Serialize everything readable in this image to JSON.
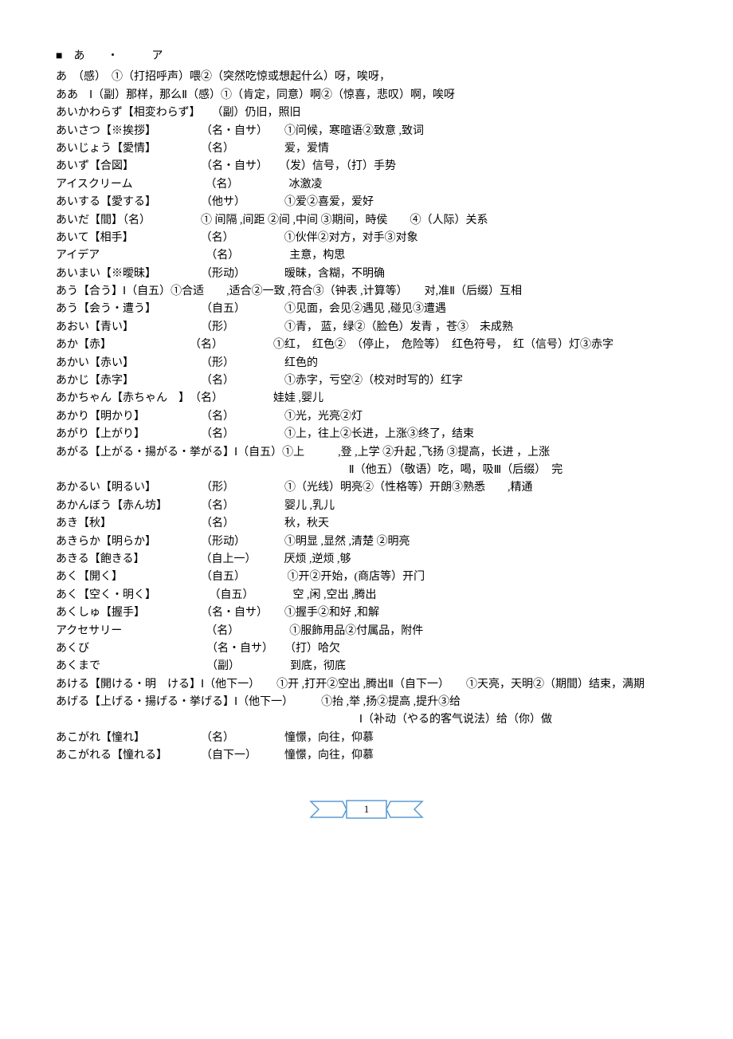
{
  "header": "■　あ　　・　　　ア",
  "entries": [
    {
      "text": "あ　（感）　①（打招呼声）喂②（突然吃惊或想起什么）呀，唉呀，"
    },
    {
      "text": "ああ　Ⅰ（副）那样，那么Ⅱ（感）①（肯定，同意）啊②（惊喜，悲叹）啊，唉呀"
    },
    {
      "text": "あいかわらず【相変わらず】　　（副）仍旧，照旧"
    },
    {
      "text": "あいさつ【※挨拶】　　　　　（名・自サ）　　①问候，寒暄语②致意 ,致词"
    },
    {
      "text": "あいじょう【愛情】　　　　　（名）　　　　　爱，爱情"
    },
    {
      "text": "あいず【合図】　　　　　　　（名・自サ）　　（发）信号，（打）手势"
    },
    {
      "text": "アイスクリーム　　　　　　　（名）　　　　　冰激凌"
    },
    {
      "text": "あいする【愛する】　　　　　（他サ）　　　　①爱②喜爱，爱好"
    },
    {
      "text": "あいだ【間】（名）　　　　　① 间隔 ,间距 ②间 ,中间 ③期间，時侯　　④（人际）关系"
    },
    {
      "text": "あいて【相手】　　　　　　　（名）　　　　　①伙伴②对方，对手③对象"
    },
    {
      "text": "アイデア　　　　　　　　　　（名）　　　　　主意，构思"
    },
    {
      "text": "あいまい【※曖昧】　　　　　（形动）　　　　暧昧，含糊，不明确"
    },
    {
      "text": "あう【合う】Ⅰ（自五）①合适　　,适合②一致 ,符合③（钟表 ,计算等）　　对,准Ⅱ（后缀）互相"
    },
    {
      "text": "あう【会う・遭う】　　　　　（自五）　　　　①见面，会见②遇见 ,碰见③遭遇"
    },
    {
      "text": "あおい【青い】　　　　　　　（形）　　　　　①青， 蓝，绿②（脸色）发青 ，苍③　未成熟"
    },
    {
      "text": "あか【赤】　　　　　　　　（名）　　　　　①红，　红色②　（停止，　危险等）　红色符号，　红（信号）灯③赤字"
    },
    {
      "text": "あかい【赤い】　　　　　　　（形）　　　　　红色的"
    },
    {
      "text": "あかじ【赤字】　　　　　　　（名）　　　　　①赤字，亏空②（校对时写的）红字"
    },
    {
      "text": "あかちゃん【赤ちゃん　】　（名）　　　　　娃娃 ,婴儿"
    },
    {
      "text": "あかり【明かり】　　　　　　（名）　　　　　①光，光亮②灯"
    },
    {
      "text": "あがり【上がり】　　　　　　（名）　　　　　①上，往上②长进，上涨③终了，结束"
    },
    {
      "text": "あがる【上がる・揚がる・挙がる】Ⅰ（自五）①上　　　,登 ,上学 ②升起 ,飞扬 ③提高，长进 ，上涨"
    },
    {
      "text": "　　　　　　　　　　　　　　　　Ⅱ（他五）（敬语）吃，喝，吸Ⅲ（后缀）　完",
      "center": true
    },
    {
      "text": "あかるい【明るい】　　　　　（形）　　　　　①（光线）明亮②（性格等）开朗③熟悉　　,精通"
    },
    {
      "text": "あかんぼう【赤ん坊】　　　　（名）　　　　　婴儿 ,乳儿"
    },
    {
      "text": "あき【秋】　　　　　　　　　（名）　　　　　秋，秋天"
    },
    {
      "text": "あきらか【明らか】　　　　　（形动）　　　　①明显 ,显然 ,清楚 ②明亮"
    },
    {
      "text": "あきる【飽きる】　　　　　　（自上一）　　　厌烦 ,逆烦 ,够"
    },
    {
      "text": "あく【開く】　　　　　　　　（自五）　　　　 ①开②开始，(商店等）开门"
    },
    {
      "text": "あく【空く・明く】　　　　　 （自五）　　　　空 ,闲 ,空出 ,腾出"
    },
    {
      "text": "あくしゅ【握手】　　　　　　（名・自サ）　　①握手②和好 ,和解"
    },
    {
      "text": "アクセサリー　　　　　　　　（名）　　　　　①服飾用品②付属品，附件"
    },
    {
      "text": "あくび　　　　　　　　　　　（名・自サ）　　（打）哈欠"
    },
    {
      "text": "あくまで　　　　　　　　　　（副）　　　　　到底，彻底"
    },
    {
      "text": "あける【開ける・明　ける】Ⅰ（他下一）　　①开 ,打开②空出 ,腾出Ⅱ（自下一）　　①天亮，天明②（期間）结束，满期"
    },
    {
      "text": "あげる【上げる・揚げる・挙げる】Ⅰ（他下一）　　　①抬 ,举 ,扬②提高 ,提升③给"
    },
    {
      "text": "　　　　　　　　　　　　　　　　Ⅰ（补动（やる的客气说法）给（你）做",
      "center": true
    },
    {
      "text": "あこがれ【憧れ】　　　　　　（名）　　　　　憧憬，向往，仰慕"
    },
    {
      "text": "あこがれる【憧れる】　　　　（自下一）　　　憧憬，向往，仰慕"
    }
  ],
  "page_number": "1",
  "ribbon_color": "#5b9bd5",
  "ribbon_fill": "#ffffff"
}
